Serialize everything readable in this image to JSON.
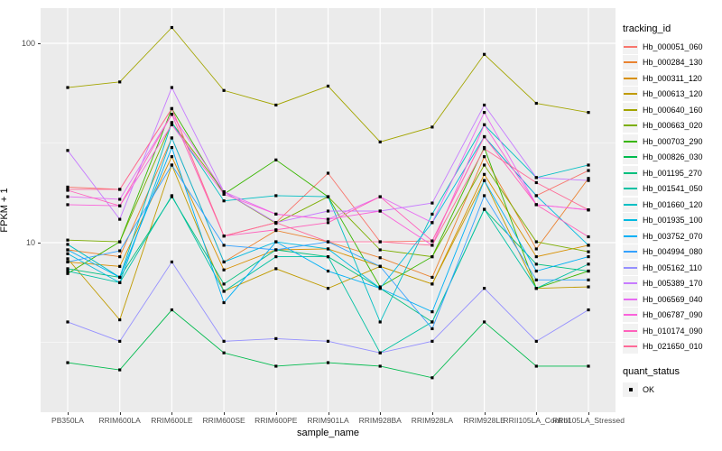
{
  "chart_data": {
    "type": "line",
    "title": "",
    "xlabel": "sample_name",
    "ylabel": "FPKM + 1",
    "x_categories": [
      "PB350LA",
      "RRIM600LA",
      "RRIM600LE",
      "RRIM600SE",
      "RRIM600PE",
      "RRIM901LA",
      "RRIM928BA",
      "RRIM928LA",
      "RRIM928LE",
      "RRII105LA_Control",
      "RRII105LA_Stressed"
    ],
    "y_scale": "log10",
    "y_ticks": [
      10,
      100
    ],
    "y_minor_ticks": [
      3.162,
      31.623
    ],
    "ylim": [
      1.41,
      149
    ],
    "grid": true,
    "panel_bg": "#EBEBEB",
    "grid_color": "#FFFFFF",
    "tick_label_color": "#4D4D4D",
    "legend_title": "tracking_id",
    "legend_position": "right",
    "point_marker": {
      "shape": "square",
      "color": "#000000",
      "size": 3.2
    },
    "quant_legend": {
      "title": "quant_status",
      "items": [
        {
          "label": "OK",
          "marker": "square",
          "color": "#000000"
        }
      ]
    },
    "series": [
      {
        "name": "Hb_000051_060",
        "color": "#F8766D",
        "values": [
          19,
          18.5,
          47,
          10.8,
          12.6,
          22.3,
          10.1,
          10.2,
          34,
          17.2,
          23
        ]
      },
      {
        "name": "Hb_000284_130",
        "color": "#EA8331",
        "values": [
          9.2,
          8.5,
          33.5,
          8.0,
          11.5,
          10.1,
          8.4,
          6.7,
          27,
          9.3,
          21
        ]
      },
      {
        "name": "Hb_000311_120",
        "color": "#D89000",
        "values": [
          8.0,
          7.6,
          27,
          7.3,
          9.2,
          9.3,
          7.6,
          6.2,
          22,
          8.5,
          9.7
        ]
      },
      {
        "name": "Hb_000613_120",
        "color": "#C09B00",
        "values": [
          8.3,
          4.1,
          24.5,
          5.7,
          7.4,
          5.9,
          7.6,
          6.2,
          20.5,
          5.9,
          6.0
        ]
      },
      {
        "name": "Hb_000640_160",
        "color": "#A3A500",
        "values": [
          60,
          64,
          120,
          58,
          49,
          61,
          32,
          38,
          88,
          50,
          45
        ]
      },
      {
        "name": "Hb_000663_020",
        "color": "#7CAE00",
        "values": [
          10.3,
          10.1,
          40,
          18,
          12.5,
          17,
          9.2,
          8.5,
          24.5,
          10.1,
          9.0
        ]
      },
      {
        "name": "Hb_000703_290",
        "color": "#39B600",
        "values": [
          7.0,
          10.1,
          47,
          17.5,
          26,
          17,
          6.0,
          8.5,
          30,
          5.9,
          7.2
        ]
      },
      {
        "name": "Hb_000826_030",
        "color": "#00BB4E",
        "values": [
          2.5,
          2.3,
          4.6,
          2.8,
          2.4,
          2.5,
          2.4,
          2.1,
          4.0,
          2.4,
          2.4
        ]
      },
      {
        "name": "Hb_001195_270",
        "color": "#00BF7D",
        "values": [
          7.4,
          6.7,
          17,
          6.2,
          9.2,
          8.5,
          5.9,
          4.0,
          14.7,
          7.8,
          7.2
        ]
      },
      {
        "name": "Hb_001541_050",
        "color": "#00C1A3",
        "values": [
          7.2,
          6.3,
          17.2,
          5.7,
          8.5,
          8.5,
          2.8,
          4.0,
          14.7,
          5.9,
          7.8
        ]
      },
      {
        "name": "Hb_001660_120",
        "color": "#00BFC4",
        "values": [
          9.8,
          6.7,
          40,
          16.2,
          17.2,
          17,
          4.0,
          13.9,
          39,
          21.2,
          24.5
        ]
      },
      {
        "name": "Hb_001935_100",
        "color": "#00BAE0",
        "values": [
          8.8,
          6.3,
          33.5,
          8.0,
          10.1,
          9.3,
          5.9,
          12.6,
          34,
          17.2,
          9.7
        ]
      },
      {
        "name": "Hb_003752_070",
        "color": "#00B0F6",
        "values": [
          9.2,
          6.7,
          30,
          5.0,
          10.1,
          7.2,
          5.9,
          4.5,
          20.5,
          7.2,
          8.5
        ]
      },
      {
        "name": "Hb_004994_080",
        "color": "#35A2FF",
        "values": [
          8.0,
          9.1,
          24.5,
          9.7,
          9.2,
          10.1,
          7.6,
          3.7,
          17.2,
          6.5,
          6.5
        ]
      },
      {
        "name": "Hb_005162_110",
        "color": "#9590FF",
        "values": [
          4.0,
          3.2,
          8.0,
          3.2,
          3.3,
          3.2,
          2.8,
          3.2,
          5.9,
          3.2,
          4.6
        ]
      },
      {
        "name": "Hb_005389_170",
        "color": "#C77CFF",
        "values": [
          29,
          13.1,
          60,
          18,
          12.6,
          14.4,
          14.4,
          15.8,
          49,
          21.2,
          20.5
        ]
      },
      {
        "name": "Hb_006569_040",
        "color": "#E76BF3",
        "values": [
          17,
          16.5,
          44,
          18,
          13.9,
          13.1,
          17,
          12.6,
          45,
          15.5,
          14.6
        ]
      },
      {
        "name": "Hb_006787_090",
        "color": "#FA62DB",
        "values": [
          15.5,
          15.3,
          39,
          17.5,
          13.9,
          13.1,
          14.4,
          9.7,
          39,
          15.5,
          14.6
        ]
      },
      {
        "name": "Hb_010174_090",
        "color": "#FF62BC",
        "values": [
          18.3,
          15.3,
          44,
          10.8,
          11.6,
          12.6,
          17,
          10.2,
          34,
          15.5,
          10.7
        ]
      },
      {
        "name": "Hb_021650_010",
        "color": "#FF6A98",
        "values": [
          18.5,
          18.5,
          47,
          10.8,
          12.6,
          10.1,
          10.1,
          9.7,
          29.6,
          20,
          14.6
        ]
      }
    ]
  }
}
